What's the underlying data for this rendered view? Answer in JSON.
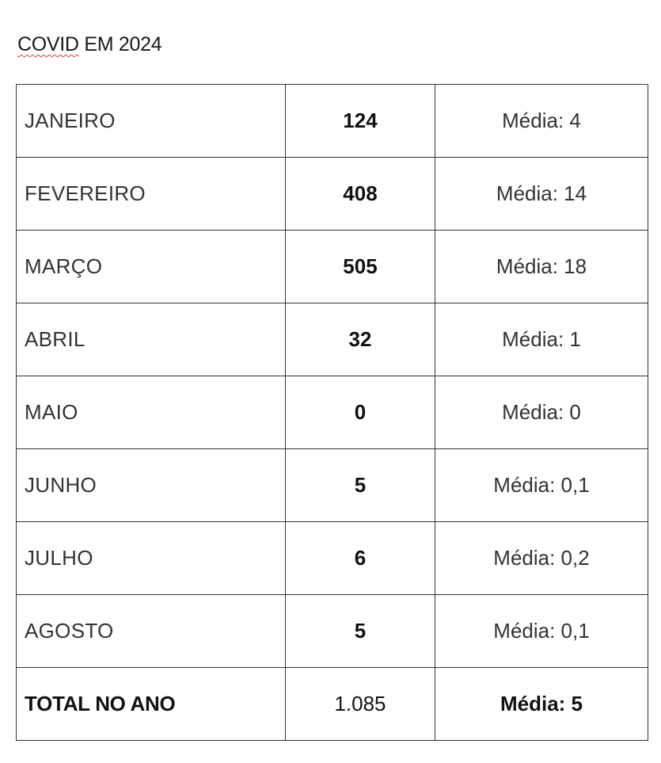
{
  "title": {
    "spellchecked_word": "COVID",
    "rest": " EM 2024"
  },
  "rows": [
    {
      "month": "JANEIRO",
      "count": "124",
      "average": "Média: 4"
    },
    {
      "month": "FEVEREIRO",
      "count": "408",
      "average": "Média: 14"
    },
    {
      "month": "MARÇO",
      "count": "505",
      "average": "Média: 18"
    },
    {
      "month": "ABRIL",
      "count": "32",
      "average": "Média: 1"
    },
    {
      "month": "MAIO",
      "count": "0",
      "average": "Média: 0"
    },
    {
      "month": "JUNHO",
      "count": "5",
      "average": "Média: 0,1"
    },
    {
      "month": "JULHO",
      "count": "6",
      "average": "Média: 0,2"
    },
    {
      "month": "AGOSTO",
      "count": "5",
      "average": "Média: 0,1"
    }
  ],
  "total": {
    "label": "TOTAL NO ANO",
    "count": "1.085",
    "average": "Média: 5"
  }
}
